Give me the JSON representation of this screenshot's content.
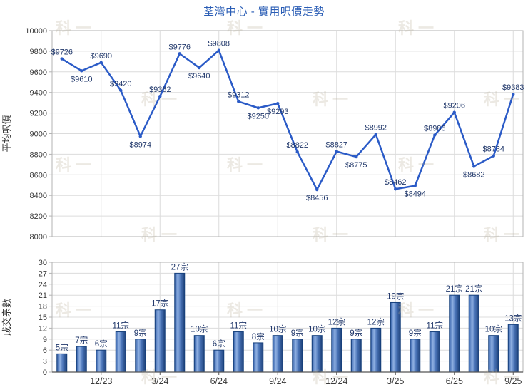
{
  "title": "荃灣中心 - 實用呎價走勢",
  "watermark_text": "科一",
  "colors": {
    "title": "#2a5db5",
    "line": "#2b5bc7",
    "data_label": "#21386b",
    "tick_label": "#3a3a3a",
    "grid": "#dcdcdc",
    "border": "#b3b3b3",
    "axis": "#555555",
    "bar_stroke": "#16407c",
    "bar_grad_edge": "#2b5390",
    "bar_grad_light": "#8fb0e2",
    "bar_grad_mid": "#4a74b8",
    "bar_grad_dark": "#1d4078",
    "watermark": "rgba(186,175,155,0.28)"
  },
  "chart_data": [
    {
      "type": "line",
      "ylabel": "平均呎價",
      "label_prefix": "$",
      "values": [
        9726,
        9610,
        9690,
        9420,
        8974,
        9362,
        9776,
        9640,
        9808,
        9312,
        9250,
        9293,
        8822,
        8456,
        8827,
        8775,
        8992,
        8462,
        8494,
        8986,
        9206,
        8682,
        8784,
        9383
      ],
      "label_below_indices": [
        1,
        4,
        7,
        10,
        11,
        13,
        15,
        18,
        21
      ],
      "ylim": [
        8000,
        10000
      ],
      "ystep": 200,
      "grid": true,
      "x_tick_positions": [
        2,
        5,
        8,
        11,
        14,
        17,
        20,
        23
      ],
      "x_tick_labels": []
    },
    {
      "type": "bar",
      "ylabel": "成交宗數",
      "label_suffix": "宗",
      "values": [
        5,
        7,
        6,
        11,
        9,
        17,
        27,
        10,
        6,
        11,
        8,
        10,
        9,
        10,
        12,
        9,
        12,
        19,
        9,
        11,
        21,
        21,
        10,
        13
      ],
      "ylim": [
        0,
        30
      ],
      "ystep": 3,
      "grid": true,
      "x_tick_positions": [
        2,
        5,
        8,
        11,
        14,
        17,
        20,
        23
      ],
      "x_tick_labels": [
        "12/23",
        "3/24",
        "6/24",
        "9/24",
        "12/24",
        "3/25",
        "6/25",
        "9/25"
      ]
    }
  ]
}
